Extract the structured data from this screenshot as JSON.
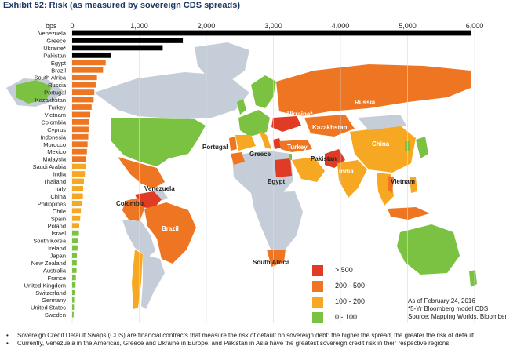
{
  "title": "Exhibit 52: Risk (as measured by sovereign CDS spreads)",
  "chart_data": {
    "type": "bar",
    "orientation": "horizontal",
    "xlabel": "bps",
    "xlim": [
      0,
      6000
    ],
    "ticks": [
      0,
      1000,
      2000,
      3000,
      4000,
      5000,
      6000
    ],
    "tick_labels": [
      "0",
      "1,000",
      "2,000",
      "3,000",
      "4,000",
      "5,000",
      "6,000"
    ],
    "categories": [
      "Venezuela",
      "Greece",
      "Ukraine*",
      "Pakistan",
      "Egypt",
      "Brazil",
      "South Africa",
      "Russia",
      "Portugal",
      "Kazakhstan",
      "Turkey",
      "Vietnam",
      "Colombia",
      "Cyprus",
      "Indonesia",
      "Morocco",
      "Mexico",
      "Malaysia",
      "Saudi Arabia",
      "India",
      "Thailand",
      "Italy",
      "China",
      "Philippines",
      "Chile",
      "Spain",
      "Poland",
      "Israel",
      "South Korea",
      "Ireland",
      "Japan",
      "New Zealand",
      "Australia",
      "France",
      "United Kingdom",
      "Switzerland",
      "Germany",
      "United States",
      "Sweden"
    ],
    "values": [
      5950,
      1650,
      1350,
      580,
      500,
      460,
      370,
      350,
      330,
      320,
      290,
      270,
      255,
      245,
      240,
      230,
      220,
      205,
      200,
      190,
      175,
      165,
      160,
      150,
      130,
      120,
      105,
      100,
      85,
      80,
      70,
      68,
      65,
      55,
      50,
      42,
      30,
      27,
      22
    ],
    "buckets": [
      ">500",
      ">500",
      ">500",
      ">500",
      "200 - 500",
      "200 - 500",
      "200 - 500",
      "200 - 500",
      "200 - 500",
      "200 - 500",
      "200 - 500",
      "200 - 500",
      "200 - 500",
      "200 - 500",
      "200 - 500",
      "200 - 500",
      "200 - 500",
      "200 - 500",
      "100 - 200",
      "100 - 200",
      "100 - 200",
      "100 - 200",
      "100 - 200",
      "100 - 200",
      "100 - 200",
      "100 - 200",
      "100 - 200",
      "0 - 100",
      "0 - 100",
      "0 - 100",
      "0 - 100",
      "0 - 100",
      "0 - 100",
      "0 - 100",
      "0 - 100",
      "0 - 100",
      "0 - 100",
      "0 - 100",
      "0 - 100"
    ],
    "legend": [
      {
        "label": "> 500",
        "color": "#e03b24"
      },
      {
        "label": "200 - 500",
        "color": "#ee7623"
      },
      {
        "label": "100 - 200",
        "color": "#f7a823"
      },
      {
        "label": "0 - 100",
        "color": "#7cc242"
      }
    ],
    "map_labels": [
      "Russia",
      "Ukraine*",
      "Kazakhstan",
      "Turkey",
      "Portugal",
      "Greece",
      "Egypt",
      "Pakistan",
      "India",
      "China",
      "Vietnam",
      "Venezuela",
      "Colombia",
      "Brazil",
      "South Africa"
    ],
    "legend_position": "bottom-right"
  },
  "notes": [
    "As of February 24, 2016",
    "*5-Yr Bloomberg model CDS",
    "Source: Mapping Worlds, Bloomberg"
  ],
  "bullets": [
    "Sovereign Credit Default Swaps (CDS) are financial contracts that measure the risk of default on sovereign debt: the higher the spread, the greater the risk of default.",
    "Currently, Venezuela in the Americas, Greece and Ukraine in Europe, and Pakistan in Asia have the greatest sovereign credit risk in their respective regions."
  ],
  "bullet_symbol": "•",
  "colors": {
    "title": "#1f3864",
    "ocean": "#ffffff",
    "land_unrated": "#c5ced8",
    "gridline": "#d6dde6"
  }
}
